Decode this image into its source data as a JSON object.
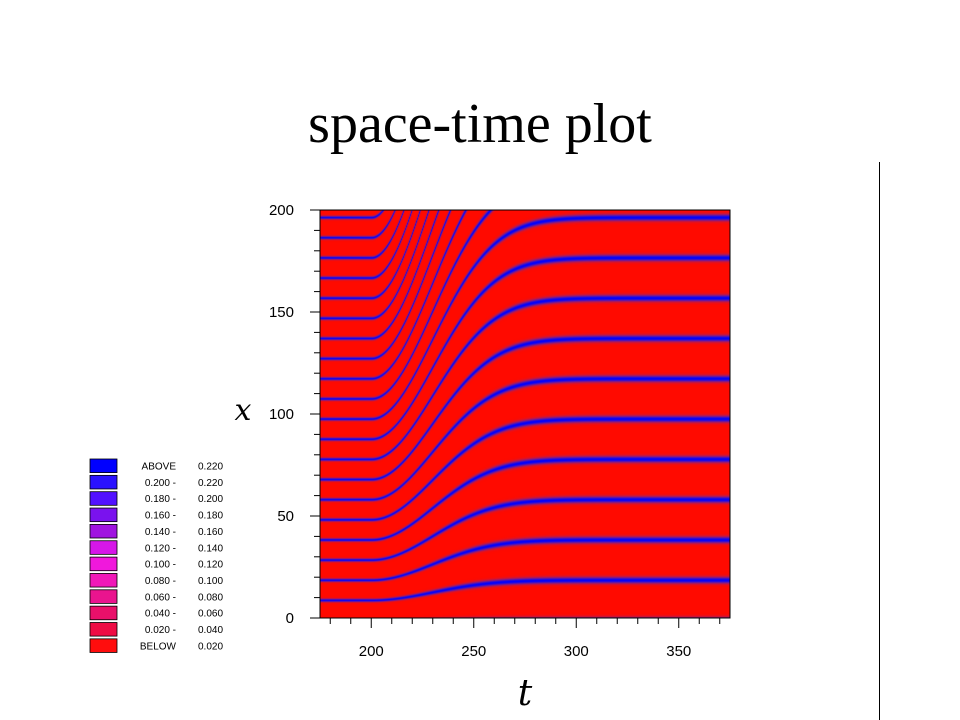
{
  "title": "space-time plot",
  "chart_data": {
    "type": "heatmap",
    "title": "space-time plot",
    "xlabel": "t",
    "ylabel": "x",
    "xlim": [
      175,
      375
    ],
    "ylim": [
      0,
      200
    ],
    "xticks": [
      200,
      250,
      300,
      350
    ],
    "yticks": [
      0,
      50,
      100,
      150,
      200
    ],
    "colors": {
      "low": "#ff0000",
      "high": "#0000ff"
    },
    "legend": {
      "placement": "left",
      "levels": [
        {
          "range_label": "ABOVE",
          "upper": "0.220",
          "color": "#0000ff"
        },
        {
          "range_label": "0.200 -",
          "upper": "0.220",
          "color": "#2a12ff"
        },
        {
          "range_label": "0.180 -",
          "upper": "0.200",
          "color": "#5211ff"
        },
        {
          "range_label": "0.160 -",
          "upper": "0.180",
          "color": "#7a12ee"
        },
        {
          "range_label": "0.140 -",
          "upper": "0.160",
          "color": "#a014e0"
        },
        {
          "range_label": "0.120 -",
          "upper": "0.140",
          "color": "#d617e8"
        },
        {
          "range_label": "0.100 -",
          "upper": "0.120",
          "color": "#f018dc"
        },
        {
          "range_label": "0.080 -",
          "upper": "0.100",
          "color": "#f018b8"
        },
        {
          "range_label": "0.060 -",
          "upper": "0.080",
          "color": "#ea148e"
        },
        {
          "range_label": "0.040 -",
          "upper": "0.060",
          "color": "#e9106a"
        },
        {
          "range_label": "0.020 -",
          "upper": "0.040",
          "color": "#ee0c44"
        },
        {
          "range_label": "BELOW",
          "upper": "0.020",
          "color": "#ff0d0d"
        }
      ]
    },
    "pattern": {
      "description_ticks": "horizontal stripes of maxima that bend toward larger x after t=200 and level off",
      "t_transition_start": 200,
      "t_transition_width": 40,
      "x_shift": 0.35
    }
  }
}
